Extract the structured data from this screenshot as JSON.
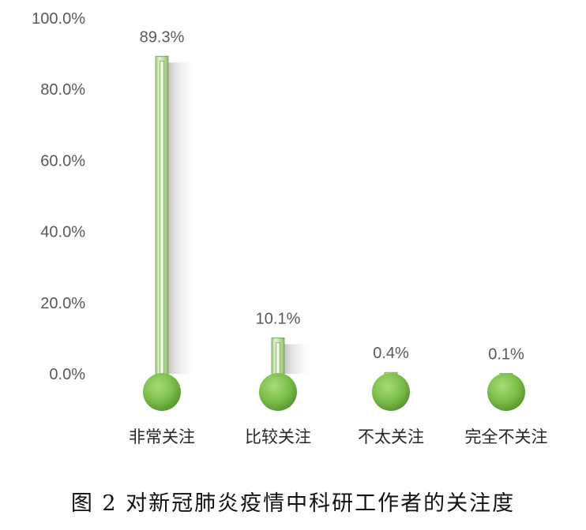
{
  "caption": "图 2 对新冠肺炎疫情中科研工作者的关注度",
  "chart_data": {
    "type": "bar",
    "style": "thermometer",
    "categories": [
      "非常关注",
      "比较关注",
      "不太关注",
      "完全不关注"
    ],
    "values": [
      89.3,
      10.1,
      0.4,
      0.1
    ],
    "value_labels": [
      "89.3%",
      "10.1%",
      "0.4%",
      "0.1%"
    ],
    "ylim": [
      0,
      100
    ],
    "yticks": [
      0,
      20,
      40,
      60,
      80,
      100
    ],
    "ytick_labels": [
      "0.0%",
      "20.0%",
      "40.0%",
      "60.0%",
      "80.0%",
      "100.0%"
    ],
    "grid": false,
    "legend": "none",
    "colors": {
      "bulb": "#7cc04a",
      "tube": "#c3e2a6",
      "tube_edge": "#6b9b47",
      "shadow": "#d9d9d9"
    }
  }
}
